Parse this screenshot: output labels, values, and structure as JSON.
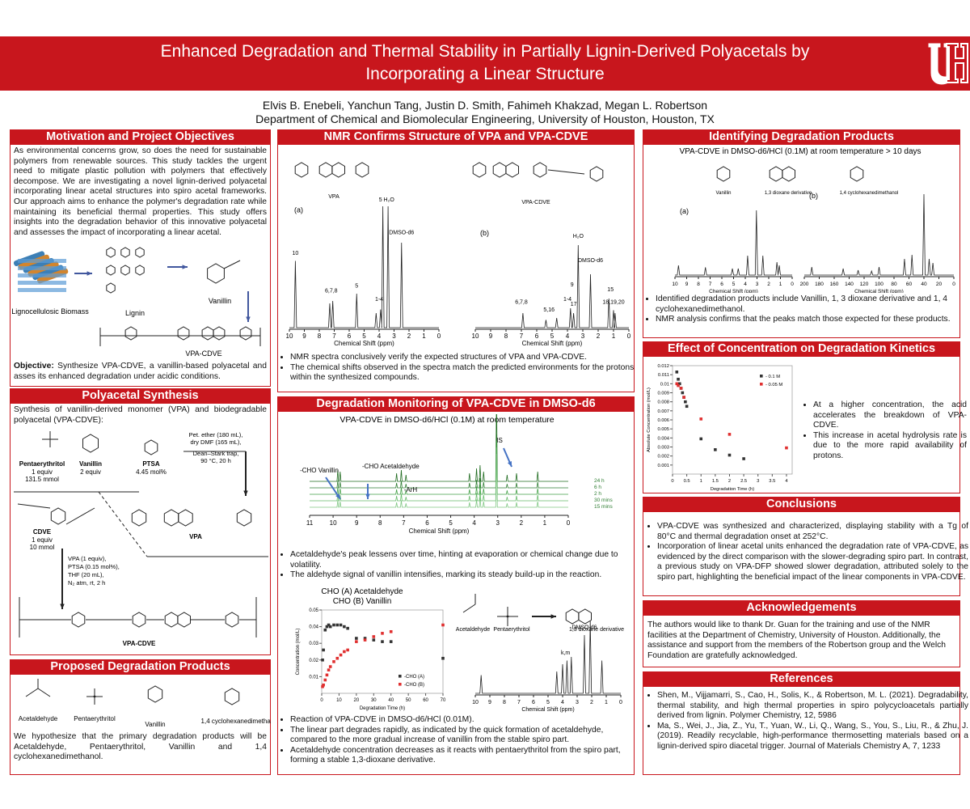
{
  "header": {
    "title_line1": "Enhanced Degradation and Thermal Stability in Partially Lignin-Derived Polyacetals by",
    "title_line2": "Incorporating a Linear Structure",
    "authors": "Elvis B. Enebeli, Yanchun Tang, Justin D. Smith, Fahimeh Khakzad, Megan L. Robertson",
    "affiliation": "Department of Chemical and Biomolecular Engineering, University of Houston, Houston, TX"
  },
  "motivation": {
    "heading": "Motivation and Project Objectives",
    "body": "As environmental concerns grow, so does the need for sustainable polymers from renewable sources. This study tackles the urgent need to mitigate plastic pollution with polymers that effectively decompose. We are investigating a novel lignin-derived polyacetal incorporating linear acetal structures into spiro acetal frameworks. Our approach aims to enhance the polymer's degradation rate while maintaining its beneficial thermal properties. This study offers insights into the degradation behavior of this innovative polyacetal and assesses the impact of incorporating a linear acetal.",
    "figure_labels": [
      "Lignocellulosic Biomass",
      "Lignin",
      "Vanillin",
      "VPA-CDVE"
    ],
    "objective_label": "Objective:",
    "objective": "Synthesize VPA-CDVE, a vanillin-based polyacetal and asses its enhanced degradation under acidic conditions."
  },
  "synthesis": {
    "heading": "Polyacetal Synthesis",
    "intro": "Synthesis of vanillin-derived monomer (VPA) and biodegradable polyacetal (VPA-CDVE):",
    "reagents": [
      {
        "name": "Pentaerythritol",
        "lines": [
          "1 equiv",
          "131.5 mmol"
        ]
      },
      {
        "name": "Vanillin",
        "lines": [
          "2 equiv"
        ]
      },
      {
        "name": "PTSA",
        "lines": [
          "4.45 mol%"
        ]
      }
    ],
    "conditions_1": [
      "Pet. ether (180 mL),",
      "dry DMF (165 mL),",
      "Dean–Stark trap,",
      "90 °C, 20 h"
    ],
    "monomer": "VPA",
    "comonomer": {
      "name": "CDVE",
      "lines": [
        "1 equiv",
        "10 mmol"
      ]
    },
    "conditions_2": [
      "VPA (1 equiv),",
      "PTSA (0.15 mol%),",
      "THF (20 mL),",
      "N₂ atm, rt, 2 h"
    ],
    "product": "VPA-CDVE"
  },
  "products": {
    "heading": "Proposed Degradation Products",
    "labels": [
      "Acetaldehyde",
      "Pentaerythritol",
      "Vanillin",
      "1,4 cyclohexanedimethanol"
    ],
    "body": "We hypothesize that the primary degradation products will be Acetaldehyde, Pentaerythritol, Vanillin and 1,4 cyclohexanedimethanol."
  },
  "nmr": {
    "heading": "NMR Confirms Structure of VPA and VPA-CDVE",
    "spectra": [
      {
        "panel": "(a)",
        "structure": "VPA",
        "x_label": "Chemical Shift (ppm)",
        "xticks": [
          10,
          9,
          8,
          7,
          6,
          5,
          4,
          3,
          2,
          1,
          0
        ],
        "peaks": [
          "10",
          "6,7,8",
          "5",
          "1-4",
          "5 H₂O",
          "DMSO-d6"
        ]
      },
      {
        "panel": "(b)",
        "structure": "VPA-CDVE",
        "x_label": "Chemical Shift (ppm)",
        "xticks": [
          10,
          9,
          8,
          7,
          6,
          5,
          4,
          3,
          2,
          1,
          0
        ],
        "peaks": [
          "6,7,8",
          "5,16",
          "1-4",
          "17",
          "H₂O",
          "DMSO-d6",
          "9",
          "15",
          "18,19,20"
        ]
      }
    ],
    "bullets": [
      "NMR spectra conclusively verify the expected structures of VPA and VPA-CDVE.",
      "The chemical shifts observed in the spectra match the predicted environments for the protons within the synthesized compounds."
    ]
  },
  "monitoring": {
    "heading": "Degradation Monitoring of VPA-CDVE in DMSO-d6",
    "subtitle": "VPA-CDVE in DMSO-d6/HCl (0.1M) at room temperature",
    "spectrum": {
      "x_label": "Chemical Shift (ppm)",
      "xticks": [
        11,
        10,
        9,
        8,
        7,
        6,
        5,
        4,
        3,
        2,
        1,
        0
      ],
      "peaks": [
        "-CHO Vanillin",
        "-CHO Acetaldehyde",
        "-ArH",
        "IS"
      ],
      "traces": [
        "24 h",
        "6 h",
        "2 h",
        "30 mins",
        "15 mins"
      ]
    },
    "bullets_1": [
      "Acetaldehyde's peak lessens over time, hinting at evaporation or chemical change due to volatility.",
      "The aldehyde signal of vanillin intensifies, marking its steady build-up in the reaction."
    ],
    "chart": {
      "type": "scatter",
      "title_lines": [
        "CHO (A) Acetaldehyde",
        "CHO (B) Vanillin"
      ],
      "x_label": "Degradation Time (h)",
      "y_label": "Concentration (mol/L)",
      "xlim": [
        0,
        70
      ],
      "ylim": [
        0,
        0.05
      ],
      "xticks": [
        0,
        10,
        20,
        30,
        40,
        50,
        60,
        70
      ],
      "yticks": [
        0.01,
        0.02,
        0.03,
        0.04,
        0.05
      ],
      "series": [
        {
          "name": "-CHO (A)",
          "color": "#333333",
          "x": [
            0.5,
            1,
            2,
            3,
            4,
            5,
            7,
            9,
            11,
            13,
            15,
            20,
            25,
            30,
            35,
            40,
            70
          ],
          "values": [
            0.02,
            0.026,
            0.038,
            0.04,
            0.041,
            0.04,
            0.041,
            0.041,
            0.041,
            0.04,
            0.039,
            0.033,
            0.033,
            0.032,
            0.031,
            0.031,
            0.021
          ]
        },
        {
          "name": "-CHO (B)",
          "color": "#e03030",
          "x": [
            0.5,
            1,
            2,
            3,
            4,
            5,
            7,
            9,
            11,
            13,
            15,
            20,
            25,
            30,
            35,
            40,
            70
          ],
          "values": [
            0.004,
            0.005,
            0.008,
            0.011,
            0.014,
            0.016,
            0.019,
            0.021,
            0.023,
            0.025,
            0.026,
            0.031,
            0.032,
            0.034,
            0.036,
            0.037,
            0.041
          ]
        }
      ]
    },
    "scheme_labels": [
      "Acetaldehyde",
      "Pentaerythritol",
      "1,3 dioxane derivative"
    ],
    "spectrum_2": {
      "x_label": "Chemical Shift (ppm)",
      "xticks": [
        10,
        9,
        8,
        7,
        6,
        5,
        4,
        3,
        2,
        1,
        0
      ],
      "peaks": [
        "k,m",
        "DMSO-d6"
      ]
    },
    "bullets_2": [
      "Reaction of VPA-CDVE in DMSO-d6/HCl (0.01M).",
      "The linear part degrades rapidly, as indicated by the quick formation of acetaldehyde, compared to the more gradual increase of vanillin from the stable spiro part.",
      "Acetaldehyde concentration decreases as it reacts with pentaerythritol from the spiro part, forming a stable 1,3-dioxane derivative."
    ]
  },
  "identifying": {
    "heading": "Identifying Degradation Products",
    "subtitle": "VPA-CDVE in DMSO-d6/HCl (0.1M) at room temperature > 10 days",
    "structures": [
      "Vanillin",
      "1,3 dioxane derivative",
      "1,4 cyclohexanedimethanol"
    ],
    "spectra": [
      {
        "panel": "(a)",
        "x_label": "Chemical Shift (ppm)",
        "xticks": [
          10,
          9,
          8,
          7,
          6,
          5,
          4,
          3,
          2,
          1,
          0
        ]
      },
      {
        "panel": "(b)",
        "x_label": "Chemical Shift (ppm)",
        "xticks": [
          200,
          180,
          160,
          140,
          120,
          100,
          80,
          60,
          40,
          20,
          0
        ]
      }
    ],
    "bullets": [
      "Identified degradation products include Vanillin, 1, 3 dioxane derivative and 1, 4 cyclohexanedimethanol.",
      "NMR analysis confirms that the peaks match those expected for these products."
    ]
  },
  "kinetics": {
    "heading": "Effect of Concentration on Degradation Kinetics",
    "chart": {
      "type": "scatter",
      "x_label": "Degradation Time (h)",
      "y_label": "Absolute Concentration (mol/L)",
      "xlim": [
        0,
        4.2
      ],
      "ylim": [
        0,
        0.012
      ],
      "xticks": [
        0,
        0.5,
        1,
        1.5,
        2,
        2.5,
        3,
        3.5,
        4
      ],
      "yticks": [
        0.001,
        0.002,
        0.003,
        0.004,
        0.005,
        0.006,
        0.007,
        0.008,
        0.009,
        0.01,
        0.011,
        0.012
      ],
      "series": [
        {
          "name": "- 0.1 M",
          "color": "#333333",
          "x": [
            0.15,
            0.2,
            0.25,
            0.3,
            0.35,
            0.4,
            0.45,
            0.5,
            1,
            1.5,
            2,
            2.5
          ],
          "values": [
            0.0113,
            0.0105,
            0.01,
            0.0095,
            0.009,
            0.0085,
            0.008,
            0.0075,
            0.0039,
            0.0027,
            0.0021,
            0.0017
          ]
        },
        {
          "name": "- 0.05 M",
          "color": "#e03030",
          "x": [
            0.15,
            0.2,
            0.3,
            0.4,
            1,
            2,
            4
          ],
          "values": [
            0.01,
            0.0098,
            0.0095,
            0.0085,
            0.0061,
            0.0044,
            0.0029
          ]
        }
      ]
    },
    "bullets": [
      "At a higher concentration, the acid accelerates the breakdown of VPA-CDVE.",
      "This increase in acetal hydrolysis rate is due to the more rapid availability of protons."
    ]
  },
  "conclusions": {
    "heading": "Conclusions",
    "bullets": [
      "VPA-CDVE was synthesized and characterized, displaying stability with a Tg of 80°C and thermal degradation onset at 252°C.",
      "Incorporation of linear acetal units enhanced the degradation rate of VPA-CDVE, as evidenced by the direct comparison with the slower-degrading spiro part. In contrast, a previous study on VPA-DFP showed slower degradation, attributed solely to the spiro part, highlighting the beneficial impact of the linear components in VPA-CDVE."
    ]
  },
  "acknowledgements": {
    "heading": "Acknowledgements",
    "body": "The authors would like to thank Dr. Guan for the training and use of the NMR facilities at the Department of Chemistry, University of Houston. Additionally, the assistance and support from the members of the Robertson group and the Welch Foundation are gratefully acknowledged."
  },
  "references": {
    "heading": "References",
    "items": [
      "Shen, M., Vijjamarri, S., Cao, H., Solis, K., & Robertson, M. L. (2021). Degradability, thermal stability, and high thermal properties in spiro polycycloacetals partially derived from lignin. Polymer Chemistry, 12, 5986",
      "Ma, S., Wei, J., Jia, Z., Yu, T., Yuan, W., Li, Q., Wang, S., You, S., Liu, R., & Zhu, J. (2019). Readily recyclable, high-performance thermosetting materials based on a lignin-derived spiro diacetal trigger. Journal of Materials Chemistry A, 7, 1233"
    ]
  }
}
